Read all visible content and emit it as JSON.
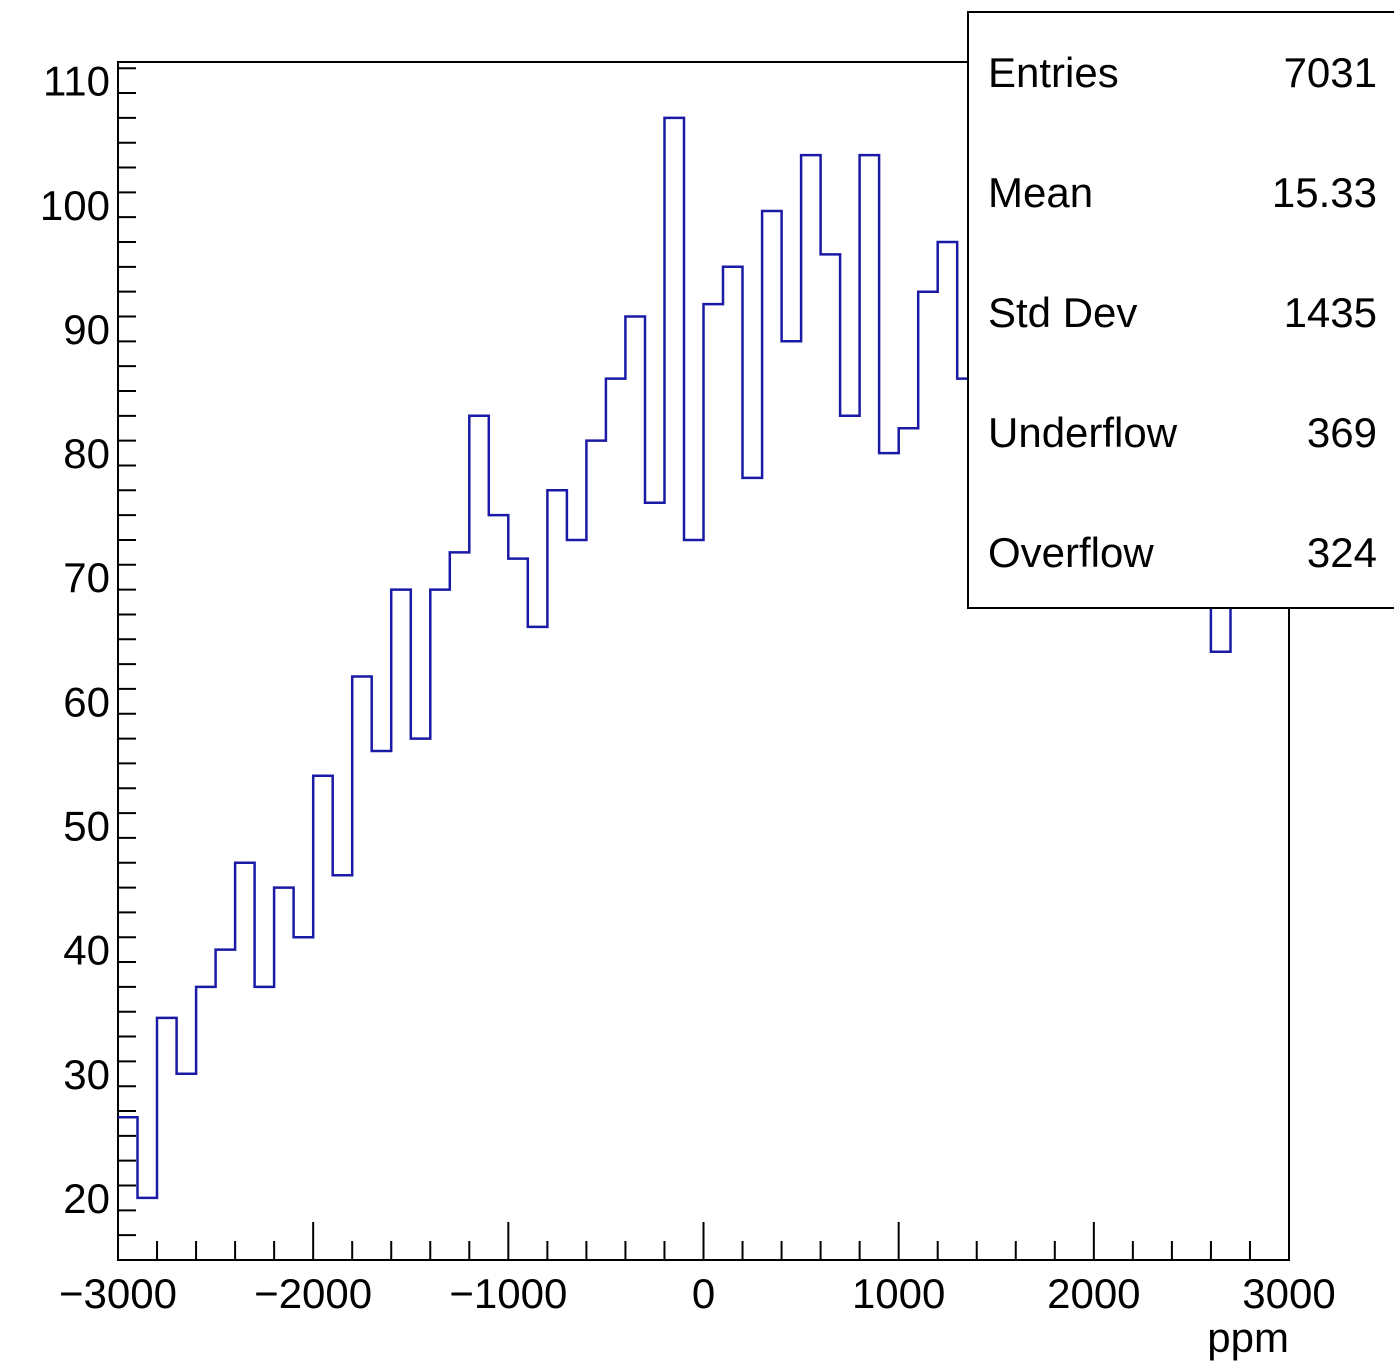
{
  "chart_data": {
    "type": "bar",
    "style": "step-histogram",
    "title": "",
    "xlabel": "ppm",
    "ylabel": "",
    "xlim": [
      -3000,
      3000
    ],
    "ylim": [
      15,
      111.5
    ],
    "x_ticks": [
      -3000,
      -2000,
      -1000,
      0,
      1000,
      2000,
      3000
    ],
    "x_tick_labels": [
      "−3000",
      "−2000",
      "−1000",
      "0",
      "1000",
      "2000",
      "3000"
    ],
    "y_ticks": [
      20,
      30,
      40,
      50,
      60,
      70,
      80,
      90,
      100,
      110
    ],
    "y_tick_labels": [
      "20",
      "30",
      "40",
      "50",
      "60",
      "70",
      "80",
      "90",
      "100",
      "110"
    ],
    "bin_width": 100,
    "grid": false,
    "series": [
      {
        "color": "#1a1aa6",
        "bin_low_edges": [
          -3000,
          -2900,
          -2800,
          -2700,
          -2600,
          -2500,
          -2400,
          -2300,
          -2200,
          -2100,
          -2000,
          -1900,
          -1800,
          -1700,
          -1600,
          -1500,
          -1400,
          -1300,
          -1200,
          -1100,
          -1000,
          -900,
          -800,
          -700,
          -600,
          -500,
          -400,
          -300,
          -200,
          -100,
          0,
          100,
          200,
          300,
          400,
          500,
          600,
          700,
          800,
          900,
          1000,
          1100,
          1200,
          1300,
          1400,
          1500,
          1600,
          1700,
          1800,
          1900,
          2000,
          2100,
          2200,
          2300,
          2400,
          2500,
          2600,
          2700,
          2800,
          2900
        ],
        "values": [
          26.5,
          20,
          34.5,
          30,
          37,
          40,
          47,
          37,
          45,
          41,
          54,
          46,
          62,
          56,
          69,
          57,
          69,
          72,
          83,
          75,
          71.5,
          66,
          77,
          73,
          81,
          86,
          91,
          76,
          107,
          73,
          92,
          95,
          78,
          99.5,
          89,
          104,
          96,
          83,
          104,
          80,
          82,
          93,
          97,
          86,
          85,
          97,
          102,
          88,
          84,
          78,
          91,
          76,
          82.5,
          74,
          86,
          78,
          64,
          74,
          78,
          77
        ]
      }
    ]
  },
  "stats_box": {
    "rows": [
      {
        "label": "Entries",
        "value": "7031"
      },
      {
        "label": "Mean",
        "value": "15.33"
      },
      {
        "label": "Std Dev",
        "value": "1435"
      },
      {
        "label": "Underflow",
        "value": "369"
      },
      {
        "label": "Overflow",
        "value": "324"
      }
    ]
  }
}
